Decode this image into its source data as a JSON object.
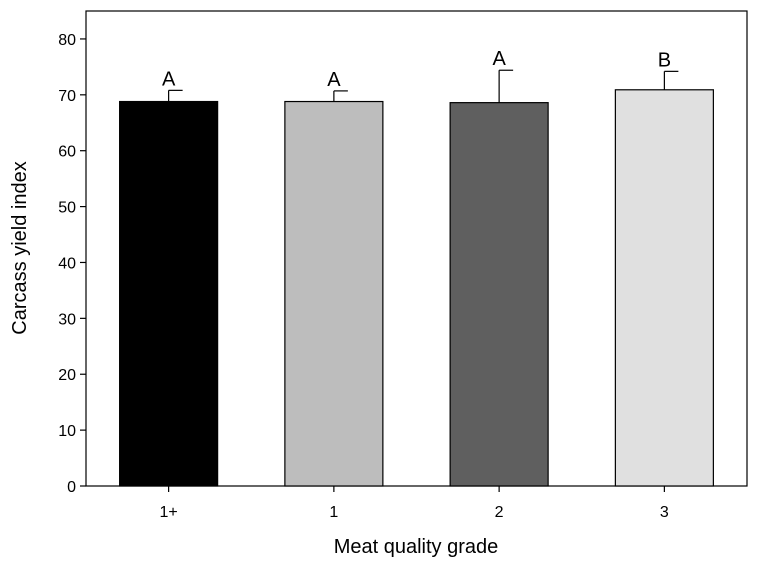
{
  "chart_data": {
    "type": "bar",
    "title": "",
    "xlabel": "Meat quality grade",
    "ylabel": "Carcass yield index",
    "categories": [
      "1+",
      "1",
      "2",
      "3"
    ],
    "values": [
      68.8,
      68.8,
      68.6,
      70.9
    ],
    "error_upper": [
      2.0,
      1.9,
      5.8,
      3.3
    ],
    "significance_labels": [
      "A",
      "A",
      "A",
      "B"
    ],
    "bar_colors": [
      "#000000",
      "#bdbdbd",
      "#5f5f5f",
      "#e0e0e0"
    ],
    "ylim": [
      0,
      85
    ],
    "yticks": [
      0,
      10,
      20,
      30,
      40,
      50,
      60,
      70,
      80
    ],
    "grid": false,
    "legend": "none"
  }
}
